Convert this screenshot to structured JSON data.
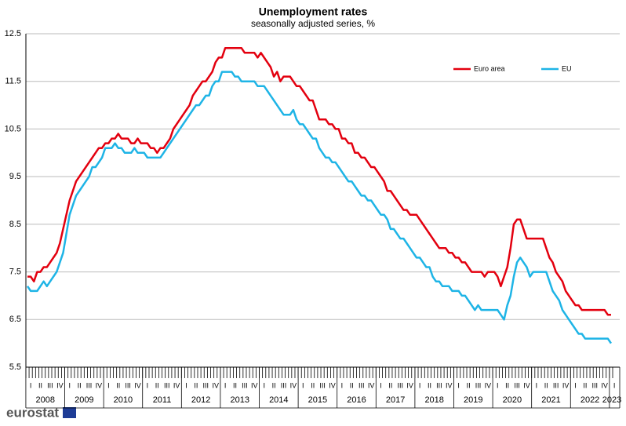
{
  "chart_data": {
    "type": "line",
    "title": "Unemployment rates",
    "subtitle": "seasonally adjusted series, %",
    "year_labels": [
      "2008",
      "2009",
      "2010",
      "2011",
      "2012",
      "2013",
      "2014",
      "2015",
      "2016",
      "2017",
      "2018",
      "2019",
      "2020",
      "2021",
      "2022",
      "2023"
    ],
    "quarter_labels": [
      "I",
      "II",
      "III",
      "IV"
    ],
    "ylim": [
      5.5,
      12.5
    ],
    "yticks": [
      5.5,
      6.5,
      7.5,
      8.5,
      9.5,
      10.5,
      11.5,
      12.5
    ],
    "grid": true,
    "legend": "top-right",
    "logo": "eurostat",
    "series": [
      {
        "name": "Euro area",
        "color": "#e3000f",
        "values": [
          7.4,
          7.4,
          7.3,
          7.5,
          7.5,
          7.6,
          7.6,
          7.7,
          7.8,
          7.9,
          8.1,
          8.4,
          8.7,
          9.0,
          9.2,
          9.4,
          9.5,
          9.6,
          9.7,
          9.8,
          9.9,
          10.0,
          10.1,
          10.1,
          10.2,
          10.2,
          10.3,
          10.3,
          10.4,
          10.3,
          10.3,
          10.3,
          10.2,
          10.2,
          10.3,
          10.2,
          10.2,
          10.2,
          10.1,
          10.1,
          10.0,
          10.1,
          10.1,
          10.2,
          10.3,
          10.5,
          10.6,
          10.7,
          10.8,
          10.9,
          11.0,
          11.2,
          11.3,
          11.4,
          11.5,
          11.5,
          11.6,
          11.7,
          11.9,
          12.0,
          12.0,
          12.2,
          12.2,
          12.2,
          12.2,
          12.2,
          12.2,
          12.1,
          12.1,
          12.1,
          12.1,
          12.0,
          12.1,
          12.0,
          11.9,
          11.8,
          11.6,
          11.7,
          11.5,
          11.6,
          11.6,
          11.6,
          11.5,
          11.4,
          11.4,
          11.3,
          11.2,
          11.1,
          11.1,
          10.9,
          10.7,
          10.7,
          10.7,
          10.6,
          10.6,
          10.5,
          10.5,
          10.3,
          10.3,
          10.2,
          10.2,
          10.0,
          10.0,
          9.9,
          9.9,
          9.8,
          9.7,
          9.7,
          9.6,
          9.5,
          9.4,
          9.2,
          9.2,
          9.1,
          9.0,
          8.9,
          8.8,
          8.8,
          8.7,
          8.7,
          8.7,
          8.6,
          8.5,
          8.4,
          8.3,
          8.2,
          8.1,
          8.0,
          8.0,
          8.0,
          7.9,
          7.9,
          7.8,
          7.8,
          7.7,
          7.7,
          7.6,
          7.5,
          7.5,
          7.5,
          7.5,
          7.4,
          7.5,
          7.5,
          7.5,
          7.4,
          7.2,
          7.4,
          7.6,
          8.0,
          8.5,
          8.6,
          8.6,
          8.4,
          8.2,
          8.2,
          8.2,
          8.2,
          8.2,
          8.2,
          8.0,
          7.8,
          7.7,
          7.5,
          7.4,
          7.3,
          7.1,
          7.0,
          6.9,
          6.8,
          6.8,
          6.7,
          6.7,
          6.7,
          6.7,
          6.7,
          6.7,
          6.7,
          6.7,
          6.6,
          6.6
        ]
      },
      {
        "name": "EU",
        "color": "#1eb4e6",
        "values": [
          7.2,
          7.1,
          7.1,
          7.1,
          7.2,
          7.3,
          7.2,
          7.3,
          7.4,
          7.5,
          7.7,
          7.9,
          8.3,
          8.7,
          8.9,
          9.1,
          9.2,
          9.3,
          9.4,
          9.5,
          9.7,
          9.7,
          9.8,
          9.9,
          10.1,
          10.1,
          10.1,
          10.2,
          10.1,
          10.1,
          10.0,
          10.0,
          10.0,
          10.1,
          10.0,
          10.0,
          10.0,
          9.9,
          9.9,
          9.9,
          9.9,
          9.9,
          10.0,
          10.1,
          10.2,
          10.3,
          10.4,
          10.5,
          10.6,
          10.7,
          10.8,
          10.9,
          11.0,
          11.0,
          11.1,
          11.2,
          11.2,
          11.4,
          11.5,
          11.5,
          11.7,
          11.7,
          11.7,
          11.7,
          11.6,
          11.6,
          11.5,
          11.5,
          11.5,
          11.5,
          11.5,
          11.4,
          11.4,
          11.4,
          11.3,
          11.2,
          11.1,
          11.0,
          10.9,
          10.8,
          10.8,
          10.8,
          10.9,
          10.7,
          10.6,
          10.6,
          10.5,
          10.4,
          10.3,
          10.3,
          10.1,
          10.0,
          9.9,
          9.9,
          9.8,
          9.8,
          9.7,
          9.6,
          9.5,
          9.4,
          9.4,
          9.3,
          9.2,
          9.1,
          9.1,
          9.0,
          9.0,
          8.9,
          8.8,
          8.7,
          8.7,
          8.6,
          8.4,
          8.4,
          8.3,
          8.2,
          8.2,
          8.1,
          8.0,
          7.9,
          7.8,
          7.8,
          7.7,
          7.6,
          7.6,
          7.4,
          7.3,
          7.3,
          7.2,
          7.2,
          7.2,
          7.1,
          7.1,
          7.1,
          7.0,
          7.0,
          6.9,
          6.8,
          6.7,
          6.8,
          6.7,
          6.7,
          6.7,
          6.7,
          6.7,
          6.7,
          6.6,
          6.5,
          6.8,
          7.0,
          7.4,
          7.7,
          7.8,
          7.7,
          7.6,
          7.4,
          7.5,
          7.5,
          7.5,
          7.5,
          7.5,
          7.3,
          7.1,
          7.0,
          6.9,
          6.7,
          6.6,
          6.5,
          6.4,
          6.3,
          6.2,
          6.2,
          6.1,
          6.1,
          6.1,
          6.1,
          6.1,
          6.1,
          6.1,
          6.1,
          6.0
        ]
      }
    ]
  }
}
